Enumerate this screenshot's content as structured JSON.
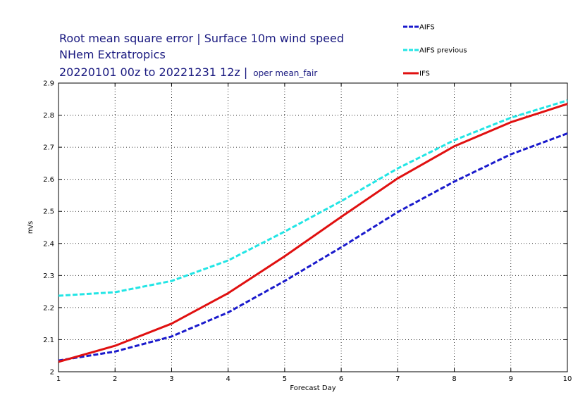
{
  "chart_data": {
    "type": "line",
    "title_lines": [
      "Root mean square error | Surface 10m wind speed",
      "NHem Extratropics",
      "20220101 00z to 20221231 12z |"
    ],
    "title_suffix": "oper mean_fair",
    "xlabel": "Forecast Day",
    "ylabel": "m/s",
    "xlim": [
      1,
      10
    ],
    "ylim": [
      2,
      2.9
    ],
    "x": [
      1,
      2,
      3,
      4,
      5,
      6,
      7,
      8,
      9,
      10
    ],
    "x_ticks": [
      "1",
      "2",
      "3",
      "4",
      "5",
      "6",
      "7",
      "8",
      "9",
      "10"
    ],
    "y_ticks": [
      "2",
      "2.1",
      "2.2",
      "2.3",
      "2.4",
      "2.5",
      "2.6",
      "2.7",
      "2.8",
      "2.9"
    ],
    "grid": true,
    "legend_position": "top-right",
    "series": [
      {
        "name": "AIFS",
        "color": "#1a1acc",
        "style": "dashed",
        "values": [
          2.035,
          2.063,
          2.11,
          2.185,
          2.283,
          2.388,
          2.498,
          2.593,
          2.678,
          2.743
        ]
      },
      {
        "name": "AIFS previous",
        "color": "#22e5e5",
        "style": "dashed",
        "values": [
          2.237,
          2.248,
          2.283,
          2.347,
          2.437,
          2.532,
          2.634,
          2.722,
          2.792,
          2.846
        ]
      },
      {
        "name": "IFS",
        "color": "#e01010",
        "style": "solid",
        "values": [
          2.031,
          2.081,
          2.15,
          2.245,
          2.36,
          2.483,
          2.603,
          2.703,
          2.778,
          2.835
        ]
      }
    ]
  }
}
